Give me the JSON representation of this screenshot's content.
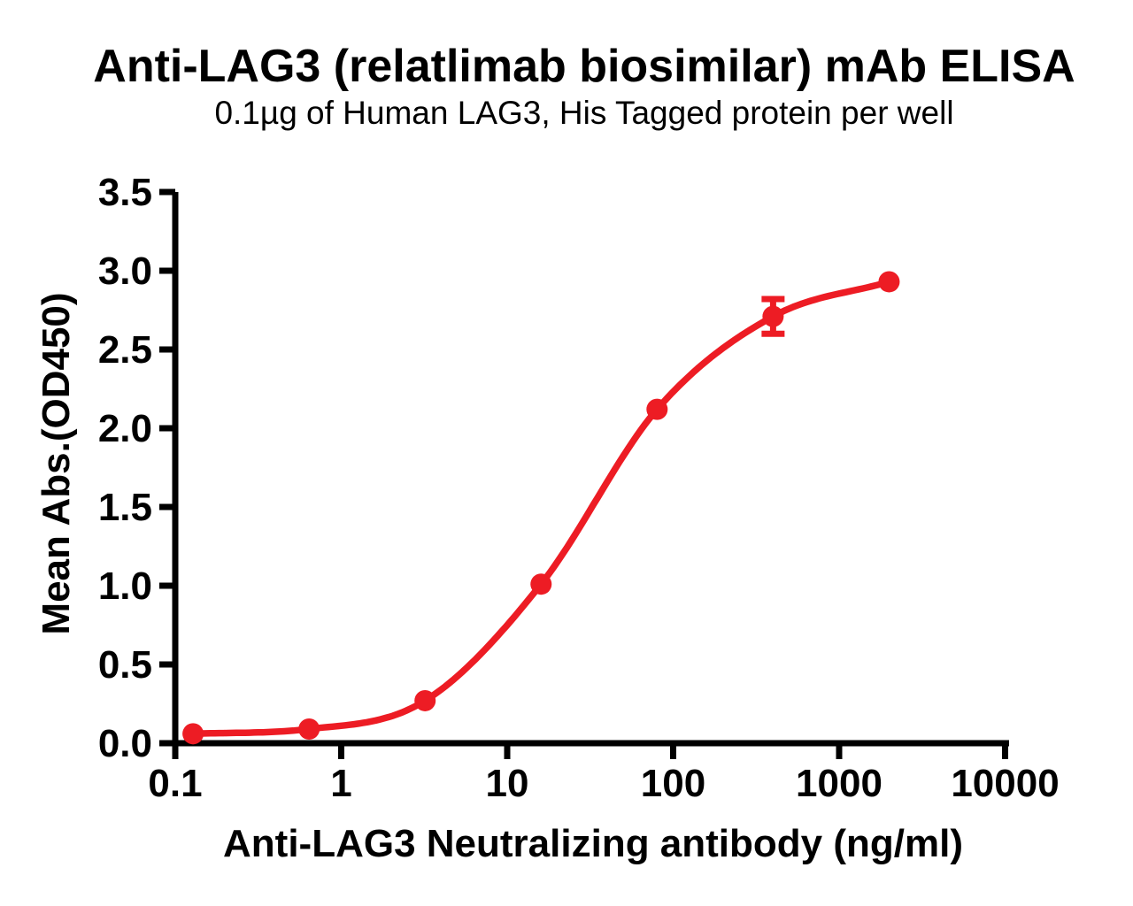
{
  "chart_data": {
    "type": "line",
    "title": "Anti-LAG3 (relatlimab biosimilar) mAb ELISA",
    "subtitle": "0.1µg of Human LAG3, His Tagged protein per well",
    "xlabel": "Anti-LAG3 Neutralizing antibody (ng/ml)",
    "ylabel": "Mean Abs.(OD450)",
    "x_scale": "log10",
    "xlim": [
      0.1,
      10000
    ],
    "ylim": [
      0.0,
      3.5
    ],
    "grid": false,
    "legend": false,
    "x_ticks": {
      "values": [
        0.1,
        1,
        10,
        100,
        1000,
        10000
      ],
      "labels": [
        "0.1",
        "1",
        "10",
        "100",
        "1000",
        "10000"
      ]
    },
    "y_ticks": {
      "values": [
        0.0,
        0.5,
        1.0,
        1.5,
        2.0,
        2.5,
        3.0,
        3.5
      ],
      "labels": [
        "0.0",
        "0.5",
        "1.0",
        "1.5",
        "2.0",
        "2.5",
        "3.0",
        "3.5"
      ]
    },
    "series": [
      {
        "color": "#ED1C24",
        "marker": "filled-circle",
        "line_style": "smooth-sigmoid-fit",
        "points": [
          {
            "x": 0.128,
            "y": 0.06,
            "y_err": 0
          },
          {
            "x": 0.64,
            "y": 0.09,
            "y_err": 0
          },
          {
            "x": 3.2,
            "y": 0.27,
            "y_err": 0
          },
          {
            "x": 16,
            "y": 1.01,
            "y_err": 0
          },
          {
            "x": 80,
            "y": 2.12,
            "y_err": 0
          },
          {
            "x": 400,
            "y": 2.71,
            "y_err": 0.11
          },
          {
            "x": 2000,
            "y": 2.93,
            "y_err": 0
          }
        ]
      }
    ],
    "axis_color": "#000000"
  }
}
